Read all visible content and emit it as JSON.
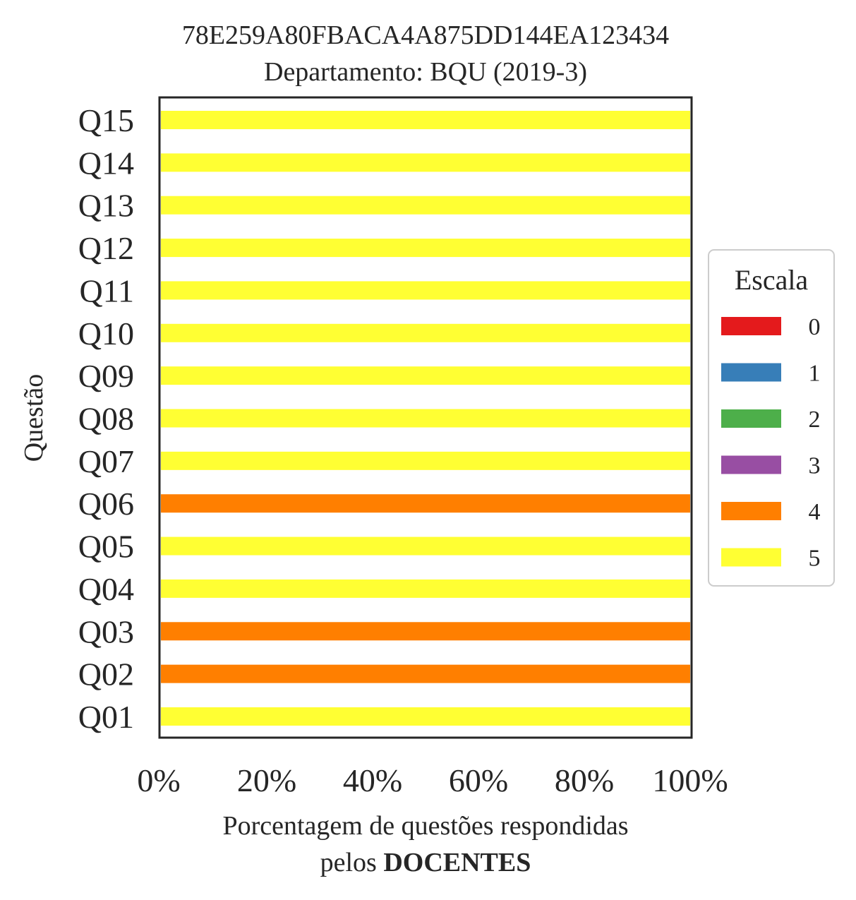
{
  "chart_data": {
    "type": "bar",
    "orientation": "horizontal",
    "stacked": true,
    "title": "78E259A80FBACA4A875DD144EA123434",
    "subtitle": "Departamento: BQU (2019-3)",
    "xlabel_line1": "Porcentagem de questões respondidas",
    "xlabel_line2_prefix": "pelos ",
    "xlabel_line2_bold": "DOCENTES",
    "ylabel": "Questão",
    "xlim": [
      0,
      100
    ],
    "xticks": [
      "0%",
      "20%",
      "40%",
      "60%",
      "80%",
      "100%"
    ],
    "categories": [
      "Q01",
      "Q02",
      "Q03",
      "Q04",
      "Q05",
      "Q06",
      "Q07",
      "Q08",
      "Q09",
      "Q10",
      "Q11",
      "Q12",
      "Q13",
      "Q14",
      "Q15"
    ],
    "series": [
      {
        "name": "0",
        "color": "#e41a1c",
        "values": [
          0,
          0,
          0,
          0,
          0,
          0,
          0,
          0,
          0,
          0,
          0,
          0,
          0,
          0,
          0
        ]
      },
      {
        "name": "1",
        "color": "#377eb8",
        "values": [
          0,
          0,
          0,
          0,
          0,
          0,
          0,
          0,
          0,
          0,
          0,
          0,
          0,
          0,
          0
        ]
      },
      {
        "name": "2",
        "color": "#4daf4a",
        "values": [
          0,
          0,
          0,
          0,
          0,
          0,
          0,
          0,
          0,
          0,
          0,
          0,
          0,
          0,
          0
        ]
      },
      {
        "name": "3",
        "color": "#984ea3",
        "values": [
          0,
          0,
          0,
          0,
          0,
          0,
          0,
          0,
          0,
          0,
          0,
          0,
          0,
          0,
          0
        ]
      },
      {
        "name": "4",
        "color": "#ff7f00",
        "values": [
          0,
          100,
          100,
          0,
          0,
          100,
          0,
          0,
          0,
          0,
          0,
          0,
          0,
          0,
          0
        ]
      },
      {
        "name": "5",
        "color": "#ffff33",
        "values": [
          100,
          0,
          0,
          100,
          100,
          0,
          100,
          100,
          100,
          100,
          100,
          100,
          100,
          100,
          100
        ]
      }
    ],
    "legend": {
      "title": "Escala",
      "placement": "right"
    },
    "grid": false
  }
}
